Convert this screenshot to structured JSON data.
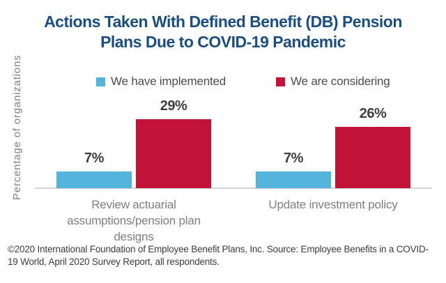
{
  "title": {
    "line1": "Actions Taken With Defined Benefit (DB) Pension",
    "line2": "Plans Due to COVID-19 Pandemic"
  },
  "y_axis_label": "Percentage of organizations",
  "legend": {
    "implemented": {
      "label": "We have implemented",
      "color": "#55b4db"
    },
    "considering": {
      "label": "We are considering",
      "color": "#c11237"
    }
  },
  "colors": {
    "title": "#1b4e7c",
    "implemented_bar": "#55b4db",
    "considering_bar": "#c11237",
    "axis_line": "#d4d4d4",
    "value_label": "#3f3f3f",
    "category_label": "#7f7f7f"
  },
  "footer": "©2020 International Foundation of Employee Benefit Plans, Inc. Source: Employee Benefits in a COVID-19 World, April 2020 Survey Report, all respondents.",
  "chart_data": {
    "type": "bar",
    "title": "Actions Taken With Defined Benefit (DB) Pension Plans Due to COVID-19 Pandemic",
    "categories": [
      "Review actuarial assumptions/pension plan designs",
      "Update investment policy"
    ],
    "series": [
      {
        "name": "We have implemented",
        "color": "#55b4db",
        "values": [
          7,
          7
        ]
      },
      {
        "name": "We are considering",
        "color": "#c11237",
        "values": [
          29,
          26
        ]
      }
    ],
    "value_suffix": "%",
    "xlabel": "",
    "ylabel": "Percentage of organizations",
    "ylim": [
      0,
      32
    ],
    "grid": false,
    "legend_position": "top",
    "data_labels": true
  }
}
